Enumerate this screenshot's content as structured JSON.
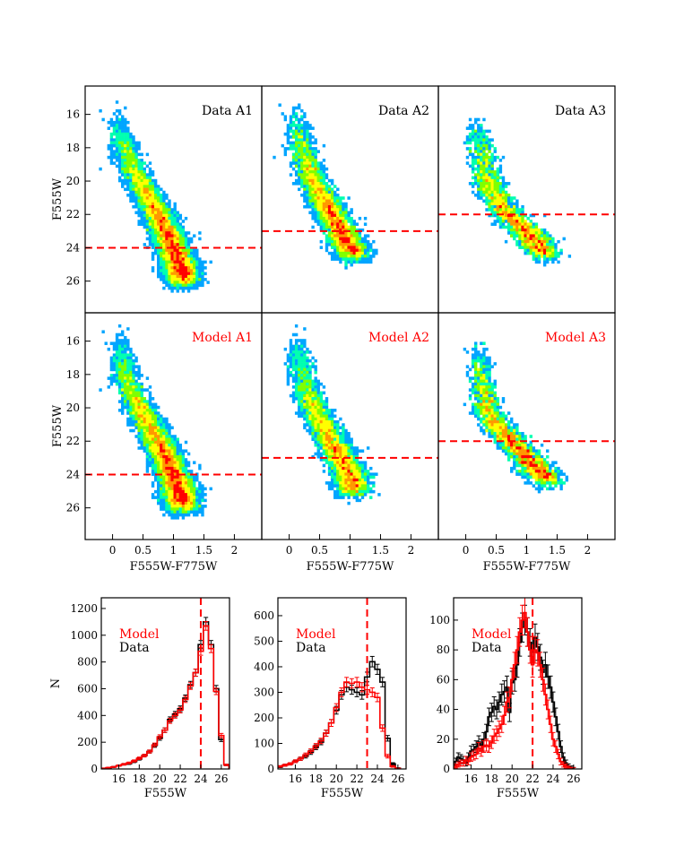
{
  "colors": {
    "data": "#000000",
    "model": "#ff0000",
    "threshold_line": "#ff0000",
    "density_colormap": [
      "#0000ff",
      "#00a5ff",
      "#00ffb0",
      "#7fff00",
      "#ffff00",
      "#ff9900",
      "#ff0000"
    ]
  },
  "chart_data": [
    {
      "type": "heatmap",
      "panel_label": "Data A1",
      "ylabel": "F555W",
      "xlabel": "",
      "xlim": [
        -0.45,
        2.45
      ],
      "ylim": [
        27.9,
        14.3
      ],
      "yticks": [
        16,
        18,
        20,
        22,
        24,
        26
      ],
      "xticks": [],
      "mag_limit": 24.0,
      "density_ridge": {
        "mag": [
          15.8,
          17,
          18,
          19,
          20,
          21,
          22,
          23,
          24,
          25,
          26
        ],
        "color": [
          0.05,
          0.1,
          0.2,
          0.3,
          0.45,
          0.6,
          0.75,
          0.88,
          1.0,
          1.1,
          1.15
        ]
      }
    },
    {
      "type": "heatmap",
      "panel_label": "Data A2",
      "ylabel": "",
      "xlabel": "",
      "xlim": [
        -0.45,
        2.45
      ],
      "ylim": [
        27.9,
        14.3
      ],
      "yticks": [],
      "xticks": [],
      "mag_limit": 23.0,
      "density_ridge": {
        "mag": [
          15.5,
          17,
          18,
          19,
          20,
          21,
          22,
          23,
          24,
          24.5
        ],
        "color": [
          0.1,
          0.15,
          0.22,
          0.3,
          0.4,
          0.55,
          0.7,
          0.85,
          1.0,
          1.05
        ]
      }
    },
    {
      "type": "heatmap",
      "panel_label": "Data A3",
      "ylabel": "",
      "xlabel": "",
      "xlim": [
        -0.45,
        2.45
      ],
      "ylim": [
        27.9,
        14.3
      ],
      "yticks": [],
      "xticks": [],
      "mag_limit": 22.0,
      "density_ridge": {
        "mag": [
          16,
          17,
          18,
          19,
          20,
          21,
          22,
          23,
          24,
          24.4
        ],
        "color": [
          0.15,
          0.2,
          0.25,
          0.3,
          0.35,
          0.5,
          0.7,
          1.0,
          1.2,
          1.3
        ]
      }
    },
    {
      "type": "heatmap",
      "panel_label": "Model A1",
      "ylabel": "F555W",
      "xlabel": "F555W-F775W",
      "xlim": [
        -0.45,
        2.45
      ],
      "ylim": [
        27.9,
        14.3
      ],
      "yticks": [
        16,
        18,
        20,
        22,
        24,
        26
      ],
      "xticks": [
        0.0,
        0.5,
        1.0,
        1.5,
        2.0
      ],
      "mag_limit": 24.0,
      "density_ridge": {
        "mag": [
          15.5,
          17,
          18,
          19,
          20,
          21,
          22,
          23,
          24,
          25,
          26
        ],
        "color": [
          0.1,
          0.15,
          0.2,
          0.3,
          0.45,
          0.6,
          0.75,
          0.88,
          1.0,
          1.1,
          1.15
        ]
      }
    },
    {
      "type": "heatmap",
      "panel_label": "Model A2",
      "ylabel": "",
      "xlabel": "F555W-F775W",
      "xlim": [
        -0.45,
        2.45
      ],
      "ylim": [
        27.9,
        14.3
      ],
      "yticks": [],
      "xticks": [
        0.0,
        0.5,
        1.0,
        1.5,
        2.0
      ],
      "mag_limit": 23.0,
      "density_ridge": {
        "mag": [
          15.5,
          17,
          18,
          19,
          20,
          21,
          22,
          23,
          24,
          25
        ],
        "color": [
          0.1,
          0.15,
          0.22,
          0.3,
          0.4,
          0.55,
          0.7,
          0.85,
          1.0,
          1.05
        ]
      }
    },
    {
      "type": "heatmap",
      "panel_label": "Model A3",
      "ylabel": "",
      "xlabel": "F555W-F775W",
      "xlim": [
        -0.45,
        2.45
      ],
      "ylim": [
        27.9,
        14.3
      ],
      "yticks": [],
      "xticks": [
        0.0,
        0.5,
        1.0,
        1.5,
        2.0
      ],
      "mag_limit": 22.0,
      "density_ridge": {
        "mag": [
          16,
          17,
          18,
          19,
          20,
          21,
          22,
          23,
          24,
          24.4
        ],
        "color": [
          0.2,
          0.22,
          0.25,
          0.3,
          0.35,
          0.5,
          0.75,
          1.0,
          1.25,
          1.35
        ]
      }
    },
    {
      "type": "line",
      "step": true,
      "xlabel": "F555W",
      "ylabel": "N",
      "xlim": [
        14.3,
        26.8
      ],
      "ylim": [
        0,
        1280
      ],
      "xticks": [
        16,
        18,
        20,
        22,
        24,
        26
      ],
      "yticks": [
        0,
        200,
        400,
        600,
        800,
        1000,
        1200
      ],
      "mag_limit": 24.0,
      "legend": [
        "Model",
        "Data"
      ],
      "legend_position": "upper-left",
      "x": [
        14.5,
        15.0,
        15.5,
        16.0,
        16.5,
        17.0,
        17.5,
        18.0,
        18.5,
        19.0,
        19.5,
        20.0,
        20.5,
        21.0,
        21.5,
        22.0,
        22.5,
        23.0,
        23.5,
        24.0,
        24.5,
        25.0,
        25.5,
        26.0,
        26.5
      ],
      "series": [
        {
          "name": "Model",
          "values": [
            5,
            10,
            15,
            25,
            35,
            45,
            60,
            80,
            100,
            130,
            180,
            240,
            290,
            360,
            400,
            440,
            520,
            620,
            720,
            880,
            1070,
            900,
            580,
            250,
            30
          ]
        },
        {
          "name": "Data",
          "values": [
            5,
            8,
            15,
            25,
            35,
            40,
            55,
            75,
            100,
            130,
            175,
            230,
            290,
            370,
            410,
            450,
            530,
            630,
            720,
            930,
            1100,
            930,
            600,
            220,
            30
          ]
        }
      ]
    },
    {
      "type": "line",
      "step": true,
      "xlabel": "F555W",
      "ylabel": "",
      "xlim": [
        14.3,
        26.8
      ],
      "ylim": [
        0,
        670
      ],
      "xticks": [
        16,
        18,
        20,
        22,
        24,
        26
      ],
      "yticks": [
        0,
        100,
        200,
        300,
        400,
        500,
        600
      ],
      "mag_limit": 23.0,
      "legend": [
        "Model",
        "Data"
      ],
      "legend_position": "upper-left",
      "x": [
        14.5,
        15.0,
        15.5,
        16.0,
        16.5,
        17.0,
        17.5,
        18.0,
        18.5,
        19.0,
        19.5,
        20.0,
        20.5,
        21.0,
        21.5,
        22.0,
        22.5,
        23.0,
        23.5,
        24.0,
        24.5,
        25.0,
        25.5,
        26.0
      ],
      "series": [
        {
          "name": "Model",
          "values": [
            10,
            15,
            20,
            30,
            40,
            55,
            70,
            90,
            110,
            140,
            180,
            240,
            300,
            340,
            335,
            340,
            320,
            310,
            300,
            280,
            160,
            50,
            10,
            2
          ]
        },
        {
          "name": "Data",
          "values": [
            8,
            15,
            20,
            30,
            40,
            50,
            65,
            85,
            105,
            140,
            180,
            230,
            290,
            320,
            310,
            300,
            290,
            360,
            420,
            390,
            340,
            120,
            20,
            3
          ]
        }
      ]
    },
    {
      "type": "line",
      "step": true,
      "xlabel": "F555W",
      "ylabel": "",
      "xlim": [
        14.3,
        26.8
      ],
      "ylim": [
        0,
        115
      ],
      "xticks": [
        16,
        18,
        20,
        22,
        24,
        26
      ],
      "yticks": [
        0,
        20,
        40,
        60,
        80,
        100
      ],
      "mag_limit": 22.0,
      "legend": [
        "Model",
        "Data"
      ],
      "legend_position": "upper-left",
      "x": [
        14.5,
        14.75,
        15.0,
        15.25,
        15.5,
        15.75,
        16.0,
        16.25,
        16.5,
        16.75,
        17.0,
        17.25,
        17.5,
        17.75,
        18.0,
        18.25,
        18.5,
        18.75,
        19.0,
        19.25,
        19.5,
        19.75,
        20.0,
        20.25,
        20.5,
        20.75,
        21.0,
        21.25,
        21.5,
        21.75,
        22.0,
        22.25,
        22.5,
        22.75,
        23.0,
        23.25,
        23.5,
        23.75,
        24.0,
        24.25,
        24.5,
        24.75,
        25.0,
        25.25,
        25.5,
        25.75,
        26.0
      ],
      "series": [
        {
          "name": "Model",
          "values": [
            2,
            3,
            4,
            4,
            6,
            5,
            8,
            9,
            10,
            14,
            12,
            15,
            16,
            15,
            18,
            22,
            24,
            27,
            30,
            36,
            45,
            48,
            60,
            70,
            80,
            92,
            100,
            105,
            92,
            80,
            70,
            80,
            78,
            70,
            60,
            50,
            40,
            30,
            20,
            15,
            10,
            5,
            3,
            2,
            1,
            0,
            0
          ]
        },
        {
          "name": "Data",
          "values": [
            5,
            8,
            7,
            6,
            4,
            8,
            12,
            13,
            15,
            18,
            16,
            20,
            25,
            35,
            38,
            42,
            40,
            45,
            50,
            52,
            55,
            38,
            58,
            60,
            70,
            85,
            95,
            100,
            92,
            85,
            80,
            88,
            82,
            75,
            65,
            70,
            62,
            55,
            45,
            35,
            25,
            15,
            8,
            4,
            2,
            1,
            0
          ]
        }
      ]
    }
  ]
}
